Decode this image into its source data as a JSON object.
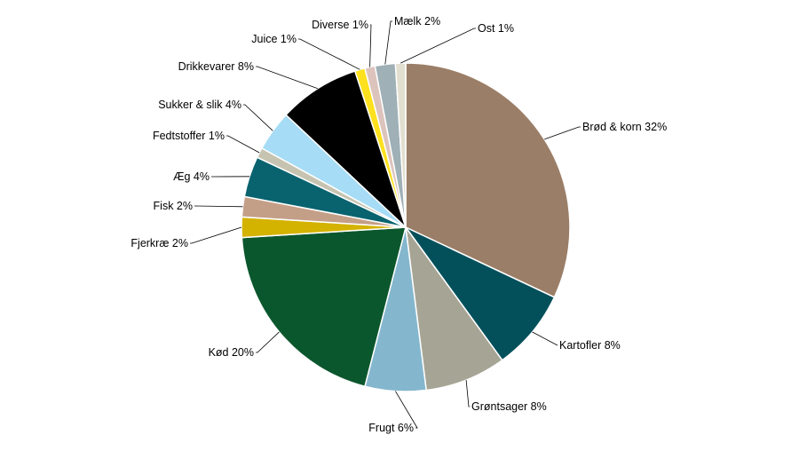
{
  "chart_data": {
    "type": "pie",
    "title": "",
    "legend": "none",
    "slices": [
      {
        "label": "Brød & korn 32%",
        "name": "Brød & korn",
        "value": 32,
        "color": "#9b7e67"
      },
      {
        "label": "Kartofler 8%",
        "name": "Kartofler",
        "value": 8,
        "color": "#03505b"
      },
      {
        "label": "Grøntsager 8%",
        "name": "Grøntsager",
        "value": 8,
        "color": "#a6a595"
      },
      {
        "label": "Frugt 6%",
        "name": "Frugt",
        "value": 6,
        "color": "#84b7ce"
      },
      {
        "label": "Kød 20%",
        "name": "Kød",
        "value": 20,
        "color": "#0b572d"
      },
      {
        "label": "Fjerkræ 2%",
        "name": "Fjerkræ",
        "value": 2,
        "color": "#d4b200"
      },
      {
        "label": "Fisk 2%",
        "name": "Fisk",
        "value": 2,
        "color": "#c49f87"
      },
      {
        "label": "Æg 4%",
        "name": "Æg",
        "value": 4,
        "color": "#08636e"
      },
      {
        "label": "Fedtstoffer 1%",
        "name": "Fedtstoffer",
        "value": 1,
        "color": "#c6c3b1"
      },
      {
        "label": "Sukker & slik 4%",
        "name": "Sukker & slik",
        "value": 4,
        "color": "#a6dcf5"
      },
      {
        "label": "Drikkevarer 8%",
        "name": "Drikkevarer",
        "value": 8,
        "color": "#000000"
      },
      {
        "label": "Juice 1%",
        "name": "Juice",
        "value": 1,
        "color": "#fde11e"
      },
      {
        "label": "Diverse 1%",
        "name": "Diverse",
        "value": 1,
        "color": "#dcc4bc"
      },
      {
        "label": "Mælk 2%",
        "name": "Mælk",
        "value": 2,
        "color": "#9fb0b6"
      },
      {
        "label": "Ost 1%",
        "name": "Ost",
        "value": 1,
        "color": "#e2dfd1"
      }
    ]
  }
}
